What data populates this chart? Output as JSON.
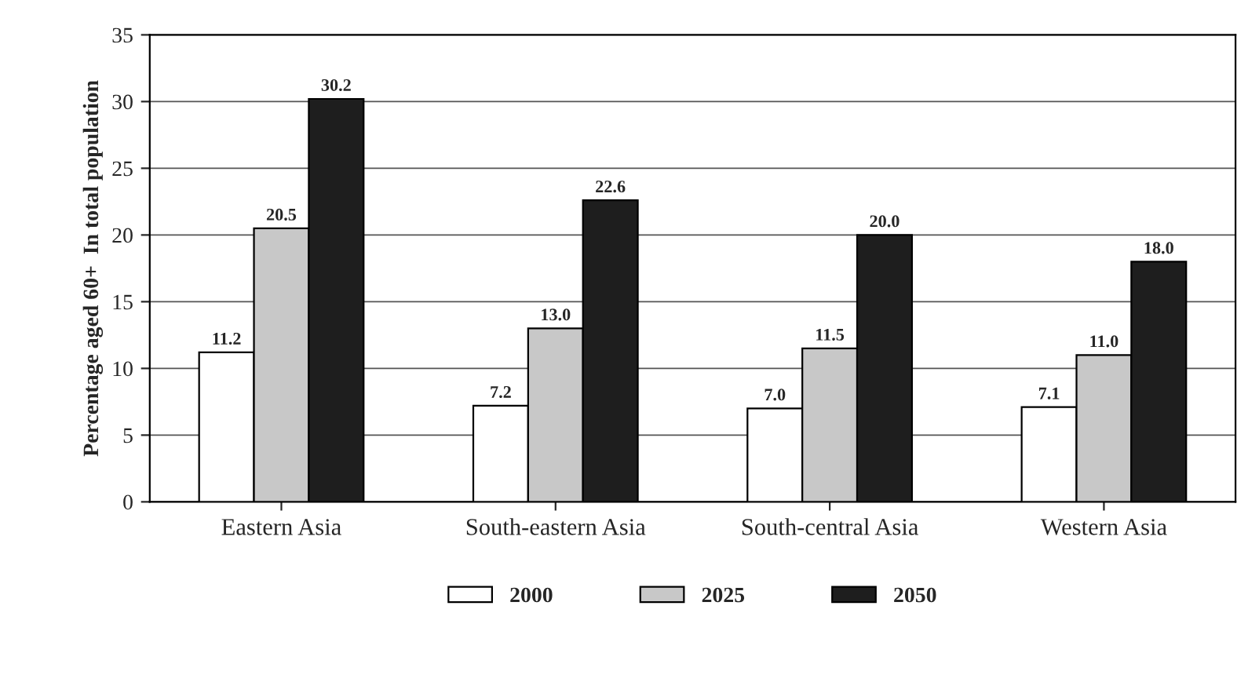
{
  "chart_data": {
    "type": "bar",
    "ylabel": "Percentage aged 60+  In total population",
    "categories": [
      "Eastern Asia",
      "South-eastern Asia",
      "South-central Asia",
      "Western Asia"
    ],
    "series": [
      {
        "name": "2000",
        "color": "#ffffff",
        "values": [
          11.2,
          7.2,
          7.0,
          7.1
        ],
        "value_labels": [
          "11.2",
          "7.2",
          "7.0",
          "7.1"
        ]
      },
      {
        "name": "2025",
        "color": "#c8c8c8",
        "values": [
          20.5,
          13.0,
          11.5,
          11.0
        ],
        "value_labels": [
          "20.5",
          "13.0",
          "11.5",
          "11.0"
        ]
      },
      {
        "name": "2050",
        "color": "#1e1e1e",
        "values": [
          30.2,
          22.6,
          20.0,
          18.0
        ],
        "value_labels": [
          "30.2",
          "22.6",
          "20.0",
          "18.0"
        ]
      }
    ],
    "ylim": [
      0,
      35
    ],
    "yticks": [
      0,
      5,
      10,
      15,
      20,
      25,
      30,
      35
    ],
    "grid": "y",
    "legend": "bottom"
  }
}
